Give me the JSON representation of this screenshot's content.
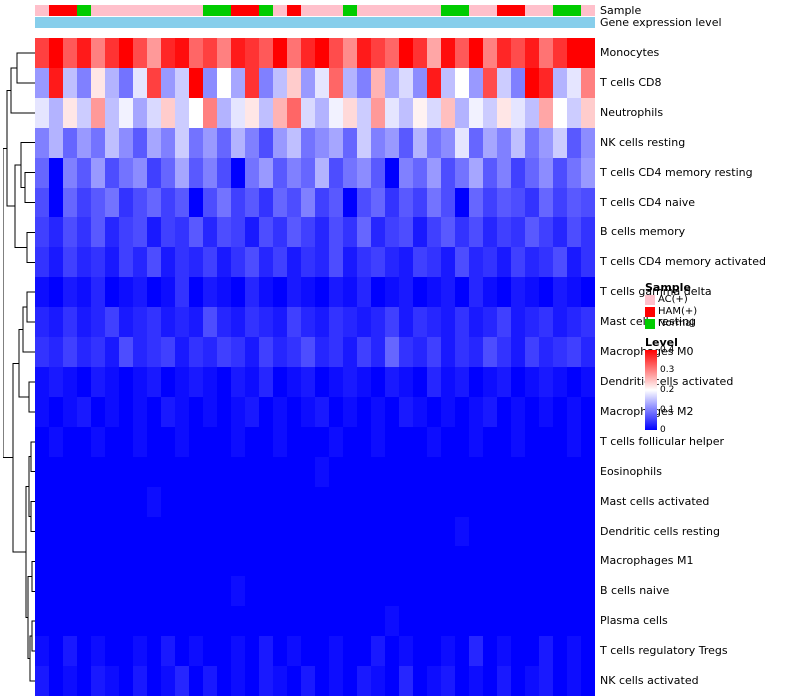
{
  "annotations": {
    "sample_label": "Sample",
    "expression_label": "Gene expression level",
    "sample_colors": {
      "AC": "#FFC0CB",
      "HAM": "#FF0000",
      "Normal": "#00CC00"
    },
    "expression_color": "#87CEEB",
    "sample_track": [
      "AC",
      "HAM",
      "HAM",
      "Normal",
      "AC",
      "AC",
      "AC",
      "AC",
      "AC",
      "AC",
      "AC",
      "AC",
      "Normal",
      "Normal",
      "HAM",
      "HAM",
      "Normal",
      "AC",
      "HAM",
      "AC",
      "AC",
      "AC",
      "Normal",
      "AC",
      "AC",
      "AC",
      "AC",
      "AC",
      "AC",
      "Normal",
      "Normal",
      "AC",
      "AC",
      "HAM",
      "HAM",
      "AC",
      "AC",
      "Normal",
      "Normal",
      "AC"
    ]
  },
  "chart_data": {
    "type": "heatmap",
    "title": "",
    "rows": [
      "Monocytes",
      "T cells CD8",
      "Neutrophils",
      "NK cells resting",
      "T cells CD4 memory resting",
      "T cells CD4 naive",
      "B cells memory",
      "T cells CD4 memory activated",
      "T cells gamma delta",
      "Mast cells resting",
      "Macrophages M0",
      "Dendritic cells activated",
      "Macrophages M2",
      "T cells follicular helper",
      "Eosinophils",
      "Mast cells activated",
      "Dendritic cells resting",
      "Macrophages M1",
      "B cells naive",
      "Plasma cells",
      "T cells regulatory  Tregs",
      "NK cells activated"
    ],
    "n_columns": 40,
    "color_scale": {
      "min": 0,
      "mid": 0.2,
      "max": 0.4,
      "min_color": "#0000FF",
      "mid_color": "#FFFFFF",
      "max_color": "#FF0000"
    },
    "values": [
      [
        0.35,
        0.4,
        0.33,
        0.38,
        0.3,
        0.36,
        0.41,
        0.34,
        0.28,
        0.37,
        0.39,
        0.32,
        0.35,
        0.3,
        0.38,
        0.36,
        0.33,
        0.4,
        0.31,
        0.37,
        0.42,
        0.34,
        0.29,
        0.38,
        0.35,
        0.32,
        0.4,
        0.36,
        0.27,
        0.39,
        0.33,
        0.41,
        0.3,
        0.37,
        0.34,
        0.38,
        0.31,
        0.36,
        0.4,
        0.42
      ],
      [
        0.12,
        0.38,
        0.15,
        0.1,
        0.22,
        0.14,
        0.09,
        0.18,
        0.35,
        0.12,
        0.16,
        0.4,
        0.11,
        0.2,
        0.13,
        0.36,
        0.1,
        0.15,
        0.24,
        0.12,
        0.18,
        0.32,
        0.14,
        0.1,
        0.26,
        0.13,
        0.17,
        0.11,
        0.38,
        0.15,
        0.2,
        0.12,
        0.34,
        0.16,
        0.1,
        0.4,
        0.37,
        0.14,
        0.18,
        0.3
      ],
      [
        0.18,
        0.14,
        0.22,
        0.16,
        0.28,
        0.15,
        0.19,
        0.13,
        0.17,
        0.24,
        0.16,
        0.2,
        0.3,
        0.14,
        0.18,
        0.22,
        0.15,
        0.26,
        0.32,
        0.17,
        0.14,
        0.19,
        0.23,
        0.16,
        0.28,
        0.18,
        0.15,
        0.21,
        0.17,
        0.25,
        0.14,
        0.19,
        0.16,
        0.22,
        0.18,
        0.15,
        0.27,
        0.2,
        0.16,
        0.24
      ],
      [
        0.1,
        0.14,
        0.08,
        0.12,
        0.09,
        0.15,
        0.11,
        0.07,
        0.13,
        0.1,
        0.16,
        0.09,
        0.12,
        0.08,
        0.14,
        0.1,
        0.06,
        0.12,
        0.15,
        0.09,
        0.11,
        0.13,
        0.08,
        0.16,
        0.1,
        0.12,
        0.07,
        0.14,
        0.09,
        0.11,
        0.18,
        0.08,
        0.13,
        0.1,
        0.15,
        0.09,
        0.12,
        0.16,
        0.07,
        0.11
      ],
      [
        0.08,
        0.0,
        0.1,
        0.07,
        0.12,
        0.06,
        0.09,
        0.11,
        0.05,
        0.08,
        0.13,
        0.07,
        0.1,
        0.06,
        0.0,
        0.09,
        0.12,
        0.07,
        0.1,
        0.08,
        0.14,
        0.06,
        0.09,
        0.11,
        0.07,
        0.0,
        0.1,
        0.08,
        0.12,
        0.06,
        0.09,
        0.13,
        0.07,
        0.1,
        0.05,
        0.08,
        0.11,
        0.06,
        0.09,
        0.12
      ],
      [
        0.06,
        0.0,
        0.08,
        0.05,
        0.07,
        0.09,
        0.04,
        0.06,
        0.08,
        0.05,
        0.07,
        0.0,
        0.06,
        0.09,
        0.05,
        0.07,
        0.04,
        0.08,
        0.06,
        0.1,
        0.05,
        0.07,
        0.0,
        0.06,
        0.08,
        0.04,
        0.07,
        0.05,
        0.09,
        0.06,
        0.0,
        0.08,
        0.05,
        0.07,
        0.06,
        0.04,
        0.08,
        0.05,
        0.07,
        0.06
      ],
      [
        0.05,
        0.03,
        0.06,
        0.04,
        0.07,
        0.03,
        0.05,
        0.06,
        0.02,
        0.05,
        0.04,
        0.07,
        0.03,
        0.06,
        0.05,
        0.02,
        0.06,
        0.04,
        0.07,
        0.05,
        0.03,
        0.06,
        0.04,
        0.08,
        0.03,
        0.05,
        0.06,
        0.02,
        0.05,
        0.07,
        0.04,
        0.06,
        0.03,
        0.05,
        0.04,
        0.07,
        0.05,
        0.03,
        0.06,
        0.04
      ],
      [
        0.04,
        0.02,
        0.05,
        0.03,
        0.04,
        0.02,
        0.05,
        0.03,
        0.06,
        0.02,
        0.04,
        0.03,
        0.05,
        0.02,
        0.04,
        0.06,
        0.03,
        0.05,
        0.02,
        0.04,
        0.03,
        0.06,
        0.02,
        0.04,
        0.05,
        0.03,
        0.02,
        0.05,
        0.04,
        0.02,
        0.06,
        0.03,
        0.04,
        0.02,
        0.05,
        0.03,
        0.04,
        0.06,
        0.02,
        0.04
      ],
      [
        0.01,
        0.0,
        0.02,
        0.01,
        0.03,
        0.0,
        0.01,
        0.02,
        0.0,
        0.01,
        0.04,
        0.0,
        0.02,
        0.01,
        0.0,
        0.03,
        0.01,
        0.0,
        0.02,
        0.01,
        0.0,
        0.02,
        0.01,
        0.03,
        0.0,
        0.01,
        0.02,
        0.0,
        0.01,
        0.02,
        0.0,
        0.03,
        0.01,
        0.0,
        0.02,
        0.01,
        0.0,
        0.02,
        0.01,
        0.0
      ],
      [
        0.03,
        0.02,
        0.04,
        0.02,
        0.03,
        0.05,
        0.02,
        0.03,
        0.04,
        0.02,
        0.03,
        0.02,
        0.06,
        0.03,
        0.02,
        0.04,
        0.03,
        0.02,
        0.05,
        0.03,
        0.02,
        0.04,
        0.03,
        0.02,
        0.03,
        0.05,
        0.02,
        0.04,
        0.03,
        0.02,
        0.04,
        0.02,
        0.03,
        0.05,
        0.02,
        0.03,
        0.04,
        0.02,
        0.03,
        0.04
      ],
      [
        0.04,
        0.03,
        0.05,
        0.03,
        0.04,
        0.02,
        0.06,
        0.03,
        0.04,
        0.05,
        0.02,
        0.04,
        0.03,
        0.05,
        0.04,
        0.02,
        0.05,
        0.03,
        0.04,
        0.06,
        0.03,
        0.04,
        0.02,
        0.05,
        0.03,
        0.08,
        0.04,
        0.03,
        0.05,
        0.02,
        0.04,
        0.03,
        0.06,
        0.04,
        0.02,
        0.05,
        0.03,
        0.04,
        0.05,
        0.03
      ],
      [
        0.01,
        0.02,
        0.01,
        0.0,
        0.02,
        0.01,
        0.0,
        0.01,
        0.02,
        0.0,
        0.01,
        0.02,
        0.01,
        0.0,
        0.02,
        0.01,
        0.03,
        0.0,
        0.01,
        0.02,
        0.0,
        0.01,
        0.02,
        0.01,
        0.0,
        0.02,
        0.01,
        0.0,
        0.03,
        0.01,
        0.02,
        0.0,
        0.01,
        0.02,
        0.0,
        0.01,
        0.02,
        0.01,
        0.0,
        0.01
      ],
      [
        0.01,
        0.0,
        0.01,
        0.02,
        0.0,
        0.01,
        0.0,
        0.01,
        0.0,
        0.02,
        0.01,
        0.0,
        0.01,
        0.0,
        0.01,
        0.02,
        0.0,
        0.01,
        0.0,
        0.01,
        0.02,
        0.0,
        0.01,
        0.0,
        0.01,
        0.0,
        0.02,
        0.01,
        0.0,
        0.01,
        0.0,
        0.01,
        0.02,
        0.0,
        0.01,
        0.0,
        0.01,
        0.0,
        0.01,
        0.0
      ],
      [
        0.0,
        0.01,
        0.0,
        0.0,
        0.01,
        0.0,
        0.0,
        0.01,
        0.0,
        0.0,
        0.01,
        0.0,
        0.0,
        0.0,
        0.01,
        0.0,
        0.0,
        0.01,
        0.0,
        0.0,
        0.0,
        0.01,
        0.0,
        0.0,
        0.01,
        0.0,
        0.0,
        0.0,
        0.01,
        0.0,
        0.0,
        0.01,
        0.0,
        0.0,
        0.01,
        0.0,
        0.0,
        0.0,
        0.01,
        0.0
      ],
      [
        0.0,
        0.0,
        0.0,
        0.0,
        0.0,
        0.0,
        0.0,
        0.0,
        0.0,
        0.0,
        0.0,
        0.0,
        0.0,
        0.0,
        0.0,
        0.0,
        0.0,
        0.0,
        0.0,
        0.0,
        0.01,
        0.0,
        0.0,
        0.0,
        0.0,
        0.0,
        0.0,
        0.0,
        0.0,
        0.0,
        0.0,
        0.0,
        0.0,
        0.0,
        0.0,
        0.0,
        0.0,
        0.0,
        0.0,
        0.0
      ],
      [
        0.0,
        0.0,
        0.0,
        0.0,
        0.0,
        0.0,
        0.0,
        0.0,
        0.01,
        0.0,
        0.0,
        0.0,
        0.0,
        0.0,
        0.0,
        0.0,
        0.0,
        0.0,
        0.0,
        0.0,
        0.0,
        0.0,
        0.0,
        0.0,
        0.0,
        0.0,
        0.0,
        0.0,
        0.0,
        0.0,
        0.0,
        0.0,
        0.0,
        0.0,
        0.0,
        0.0,
        0.0,
        0.0,
        0.0,
        0.0
      ],
      [
        0.0,
        0.0,
        0.0,
        0.0,
        0.0,
        0.0,
        0.0,
        0.0,
        0.0,
        0.0,
        0.0,
        0.0,
        0.0,
        0.0,
        0.0,
        0.0,
        0.0,
        0.0,
        0.0,
        0.0,
        0.0,
        0.0,
        0.0,
        0.0,
        0.0,
        0.0,
        0.0,
        0.0,
        0.0,
        0.0,
        0.01,
        0.0,
        0.0,
        0.0,
        0.0,
        0.0,
        0.0,
        0.0,
        0.0,
        0.0
      ],
      [
        0.0,
        0.0,
        0.0,
        0.0,
        0.0,
        0.0,
        0.0,
        0.0,
        0.0,
        0.0,
        0.0,
        0.0,
        0.0,
        0.0,
        0.0,
        0.0,
        0.0,
        0.0,
        0.0,
        0.0,
        0.0,
        0.0,
        0.0,
        0.0,
        0.0,
        0.0,
        0.0,
        0.0,
        0.0,
        0.0,
        0.0,
        0.0,
        0.0,
        0.0,
        0.0,
        0.0,
        0.0,
        0.0,
        0.0,
        0.0
      ],
      [
        0.0,
        0.0,
        0.0,
        0.0,
        0.0,
        0.0,
        0.0,
        0.0,
        0.0,
        0.0,
        0.0,
        0.0,
        0.0,
        0.0,
        0.01,
        0.0,
        0.0,
        0.0,
        0.0,
        0.0,
        0.0,
        0.0,
        0.0,
        0.0,
        0.0,
        0.0,
        0.0,
        0.0,
        0.0,
        0.0,
        0.0,
        0.0,
        0.0,
        0.0,
        0.0,
        0.0,
        0.0,
        0.0,
        0.0,
        0.0
      ],
      [
        0.0,
        0.0,
        0.0,
        0.0,
        0.0,
        0.0,
        0.0,
        0.0,
        0.0,
        0.0,
        0.0,
        0.0,
        0.0,
        0.0,
        0.0,
        0.0,
        0.0,
        0.0,
        0.0,
        0.0,
        0.0,
        0.0,
        0.0,
        0.0,
        0.0,
        0.01,
        0.0,
        0.0,
        0.0,
        0.0,
        0.0,
        0.0,
        0.0,
        0.0,
        0.0,
        0.0,
        0.0,
        0.0,
        0.0,
        0.0
      ],
      [
        0.01,
        0.0,
        0.02,
        0.0,
        0.01,
        0.0,
        0.0,
        0.01,
        0.0,
        0.02,
        0.0,
        0.01,
        0.0,
        0.0,
        0.01,
        0.0,
        0.02,
        0.0,
        0.01,
        0.0,
        0.0,
        0.01,
        0.0,
        0.0,
        0.02,
        0.0,
        0.01,
        0.0,
        0.0,
        0.01,
        0.0,
        0.03,
        0.0,
        0.01,
        0.0,
        0.0,
        0.02,
        0.0,
        0.01,
        0.0
      ],
      [
        0.02,
        0.0,
        0.01,
        0.0,
        0.02,
        0.01,
        0.0,
        0.02,
        0.0,
        0.01,
        0.03,
        0.0,
        0.02,
        0.0,
        0.01,
        0.0,
        0.02,
        0.01,
        0.0,
        0.02,
        0.0,
        0.01,
        0.0,
        0.02,
        0.01,
        0.0,
        0.03,
        0.0,
        0.01,
        0.02,
        0.0,
        0.01,
        0.0,
        0.02,
        0.0,
        0.01,
        0.02,
        0.0,
        0.01,
        0.0
      ]
    ]
  },
  "legend": {
    "sample": {
      "title": "Sample",
      "items": [
        {
          "label": "AC(+)",
          "color": "#FFC0CB"
        },
        {
          "label": "HAM(+)",
          "color": "#FF0000"
        },
        {
          "label": "Normal",
          "color": "#00CC00"
        }
      ]
    },
    "level": {
      "title": "Level",
      "ticks": [
        "0.4",
        "0.3",
        "0.2",
        "0.1",
        "0"
      ]
    }
  }
}
